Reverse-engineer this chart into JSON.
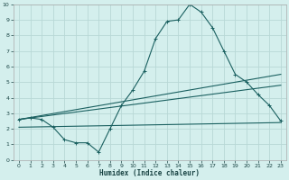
{
  "xlabel": "Humidex (Indice chaleur)",
  "bg_color": "#d4efed",
  "grid_color": "#b8d8d6",
  "line_color": "#1a6060",
  "xlim": [
    -0.5,
    23.5
  ],
  "ylim": [
    0,
    10
  ],
  "xticks": [
    0,
    1,
    2,
    3,
    4,
    5,
    6,
    7,
    8,
    9,
    10,
    11,
    12,
    13,
    14,
    15,
    16,
    17,
    18,
    19,
    20,
    21,
    22,
    23
  ],
  "yticks": [
    0,
    1,
    2,
    3,
    4,
    5,
    6,
    7,
    8,
    9,
    10
  ],
  "line1_x": [
    0,
    1,
    2,
    3,
    4,
    5,
    6,
    7,
    8,
    9,
    10,
    11,
    12,
    13,
    14,
    15,
    16,
    17,
    18,
    19,
    20,
    21,
    22,
    23
  ],
  "line1_y": [
    2.6,
    2.7,
    2.6,
    2.1,
    1.3,
    1.1,
    1.1,
    0.5,
    2.0,
    3.5,
    4.5,
    5.7,
    7.8,
    8.9,
    9.0,
    10.0,
    9.5,
    8.5,
    7.0,
    5.5,
    5.0,
    4.2,
    3.5,
    2.5
  ],
  "line2_x": [
    0,
    23
  ],
  "line2_y": [
    2.6,
    5.5
  ],
  "line3_x": [
    0,
    23
  ],
  "line3_y": [
    2.6,
    4.8
  ],
  "line4_x": [
    0,
    23
  ],
  "line4_y": [
    2.1,
    2.4
  ]
}
